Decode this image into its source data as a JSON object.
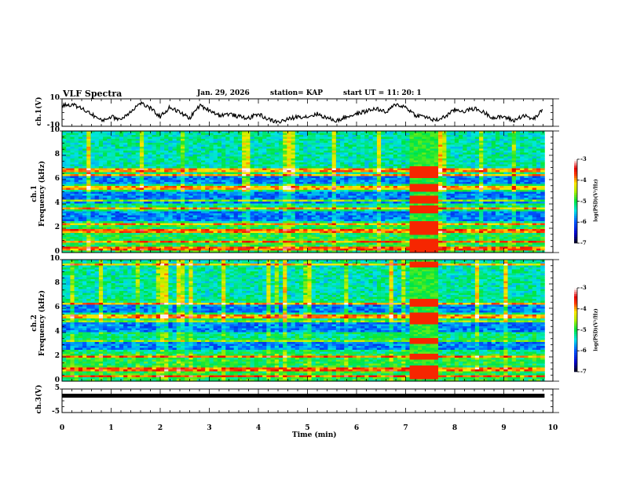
{
  "header": {
    "title": "VLF Spectra",
    "date": "Jan. 29, 2026",
    "station": "station= KAP",
    "start_ut": "start  UT =   11: 20: 1"
  },
  "colors": {
    "waveform": "#000000",
    "axis": "#000000",
    "background": "#ffffff"
  },
  "chart_data": [
    {
      "type": "line",
      "name": "ch1-waveform",
      "ylabel": "ch.1(V)",
      "ylim": [
        -10,
        10
      ],
      "yticks": [
        "10",
        "-10"
      ],
      "xlim": [
        0,
        10
      ],
      "x": [
        0,
        0.2,
        0.4,
        0.6,
        0.8,
        1.0,
        1.2,
        1.4,
        1.6,
        1.8,
        2.0,
        2.2,
        2.4,
        2.6,
        2.8,
        3.0,
        3.2,
        3.4,
        3.6,
        3.8,
        4.0,
        4.2,
        4.4,
        4.6,
        4.8,
        5.0,
        5.2,
        5.4,
        5.6,
        5.8,
        6.0,
        6.2,
        6.4,
        6.6,
        6.8,
        7.0,
        7.2,
        7.4,
        7.6,
        7.8,
        8.0,
        8.2,
        8.4,
        8.6,
        8.8,
        9.0,
        9.2,
        9.4,
        9.6,
        9.8
      ],
      "values": [
        5,
        6,
        3,
        -1,
        -6,
        -3,
        -5,
        1,
        7,
        3,
        -3,
        4,
        0,
        -4,
        5,
        2,
        -2,
        -1,
        -3,
        -4,
        -1,
        -5,
        -7,
        -5,
        -3,
        -3,
        -1,
        -4,
        -6,
        -3,
        -1,
        1,
        3,
        0,
        6,
        4,
        -2,
        -3,
        -6,
        -3,
        2,
        1,
        3,
        0,
        -4,
        -3,
        -6,
        -2,
        -5,
        2
      ],
      "note": "approximate waveform trace"
    },
    {
      "type": "heatmap",
      "name": "ch1-spectrogram",
      "ylabel_line1": "ch.1",
      "ylabel_line2": "Frequency (kHz)",
      "yticks": [
        "0",
        "2",
        "4",
        "6",
        "8",
        "10"
      ],
      "ylim": [
        0,
        10
      ],
      "xlim": [
        0,
        10
      ],
      "colorbar": {
        "label": "log(PSD)(V²/Hz)",
        "ticks": [
          "-3",
          "-4",
          "-5",
          "-6",
          "-7"
        ],
        "range": [
          -7,
          -3
        ]
      },
      "active_interval_min": [
        7.0,
        7.6
      ],
      "bands_khz": [
        0.3,
        0.9,
        1.8,
        2.3,
        3.6,
        4.3,
        5.3,
        6.4,
        6.8
      ]
    },
    {
      "type": "heatmap",
      "name": "ch2-spectrogram",
      "ylabel_line1": "ch.2",
      "ylabel_line2": "Frequency (kHz)",
      "yticks": [
        "0",
        "2",
        "4",
        "6",
        "8",
        "10"
      ],
      "ylim": [
        0,
        10
      ],
      "xlim": [
        0,
        10
      ],
      "colorbar": {
        "label": "log(PSD)(V²/Hz)",
        "ticks": [
          "-3",
          "-4",
          "-5",
          "-6",
          "-7"
        ],
        "range": [
          -7,
          -3
        ]
      },
      "active_interval_min": [
        7.0,
        7.6
      ],
      "bands_khz": [
        0.4,
        1.0,
        2.0,
        3.3,
        4.9,
        5.3,
        6.4,
        9.6
      ]
    },
    {
      "type": "line",
      "name": "ch3-waveform",
      "ylabel": "ch.3(V)",
      "ylim": [
        -5,
        5
      ],
      "yticks": [
        "5",
        "-5"
      ],
      "xlim": [
        0,
        10
      ],
      "x": [
        0,
        9.83
      ],
      "values": [
        2,
        2
      ],
      "xlabel": "Time  (min)",
      "xticks": [
        "0",
        "1",
        "2",
        "3",
        "4",
        "5",
        "6",
        "7",
        "8",
        "9",
        "10"
      ]
    }
  ]
}
